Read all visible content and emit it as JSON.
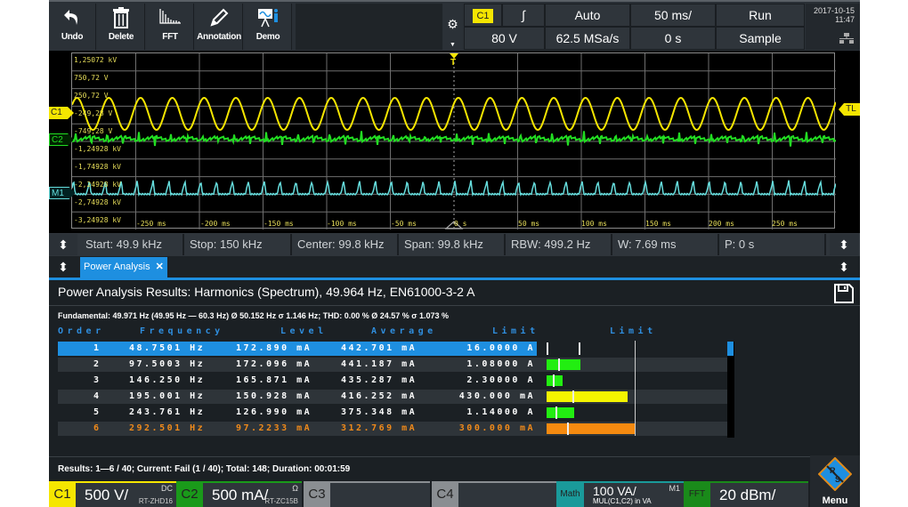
{
  "toolbar": {
    "buttons": [
      {
        "label": "Undo",
        "icon": "undo-icon"
      },
      {
        "label": "Delete",
        "icon": "trash-icon"
      },
      {
        "label": "FFT",
        "icon": "fft-icon"
      },
      {
        "label": "Annotation",
        "icon": "pencil-icon"
      },
      {
        "label": "Demo",
        "icon": "demo-icon"
      }
    ],
    "settings_icon": "gear-icon"
  },
  "header": {
    "trigger_source": "C1",
    "trigger_slope": "∫",
    "trigger_mode": "Auto",
    "timebase": "50 ms/",
    "run_state": "Run",
    "trigger_level": "80 V",
    "sample_rate": "62.5 MSa/s",
    "horizontal_position": "0 s",
    "acquisition_mode": "Sample",
    "date": "2017-10-15",
    "time": "11:47"
  },
  "scope": {
    "y_labels": [
      "1,25072 kV",
      "750,72 V",
      "250,72 V",
      "-249,28 V",
      "-749,28 V",
      "-1,24928 kV",
      "-1,74928 kV",
      "-2,24928 kV",
      "-2,74928 kV",
      "-3,24928 kV"
    ],
    "x_labels": [
      "-250 ms",
      "-200 ms",
      "-150 ms",
      "-100 ms",
      "-50 ms",
      "0 s",
      "50 ms",
      "100 ms",
      "150 ms",
      "200 ms",
      "250 ms"
    ],
    "markers": {
      "c1": "C1",
      "c2": "C2",
      "m1": "M1",
      "trigger_level": "TL",
      "trigger_pos": "T"
    },
    "colors": {
      "c1": "#f5e600",
      "c2": "#22dd22",
      "m1": "#66dddd"
    }
  },
  "fft_bar": {
    "start": "Start: 49.9 kHz",
    "stop": "Stop: 150 kHz",
    "center": "Center: 99.8 kHz",
    "span": "Span: 99.8 kHz",
    "rbw": "RBW: 499.2 Hz",
    "window": "W: 7.69 ms",
    "position": "P: 0 s"
  },
  "tabs": {
    "active": "Power Analysis",
    "close_icon": "✕"
  },
  "results": {
    "title": "Power Analysis Results: Harmonics (Spectrum), 49.964 Hz, EN61000-3-2 A",
    "fundamental": "Fundamental: 49.971 Hz (49.95 Hz — 60.3 Hz) Ø  50.152 Hz  σ 1.146 Hz; THD: 0.00 % Ø  24.57 % σ 1.073 %",
    "columns": [
      "Order",
      "Frequency",
      "Level",
      "Average",
      "Limit",
      "Limit"
    ],
    "rows": [
      {
        "order": "1",
        "frequency": "48.7501 Hz",
        "level": "172.890 mA",
        "average": "442.701 mA",
        "limit": "16.0000 A",
        "bar_pct": 0,
        "bar_color": "",
        "avg_pct": 38,
        "selected": true
      },
      {
        "order": "2",
        "frequency": "97.5003 Hz",
        "level": "172.096 mA",
        "average": "441.187 mA",
        "limit": "1.08000 A",
        "bar_pct": 40,
        "bar_color": "#22ee11",
        "avg_pct": 14
      },
      {
        "order": "3",
        "frequency": "146.250 Hz",
        "level": "165.871 mA",
        "average": "435.287 mA",
        "limit": "2.30000 A",
        "bar_pct": 19,
        "bar_color": "#22ee11",
        "avg_pct": 7
      },
      {
        "order": "4",
        "frequency": "195.001 Hz",
        "level": "150.928 mA",
        "average": "416.252 mA",
        "limit": "430.000 mA",
        "bar_pct": 96,
        "bar_color": "#f5f500",
        "avg_pct": 31
      },
      {
        "order": "5",
        "frequency": "243.761 Hz",
        "level": "126.990 mA",
        "average": "375.348 mA",
        "limit": "1.14000 A",
        "bar_pct": 33,
        "bar_color": "#22ee11",
        "avg_pct": 10
      },
      {
        "order": "6",
        "frequency": "292.501 Hz",
        "level": "97.2233 mA",
        "average": "312.769 mA",
        "limit": "300.000 mA",
        "bar_pct": 104,
        "bar_color": "#f58a10",
        "avg_pct": 24,
        "warn": true
      }
    ],
    "footer": "Results:  1—6 / 40; Current: Fail (1 / 40); Total: 148; Duration: 00:01:59"
  },
  "channels": {
    "c1": {
      "label": "C1",
      "scale": "500 V/",
      "coupling": "DC",
      "probe": "RT-ZHD16",
      "color": "#f5e600"
    },
    "c2": {
      "label": "C2",
      "scale": "500 mA/",
      "coupling": "Ω",
      "probe": "RT-ZC15B",
      "color": "#1a9a1a"
    },
    "c3": {
      "label": "C3"
    },
    "c4": {
      "label": "C4"
    },
    "math": {
      "label": "Math",
      "scale": "100 VA/",
      "id": "M1",
      "expr": "MUL(C1,C2) in VA",
      "color": "#1a9a9a"
    },
    "fft": {
      "label": "FFT",
      "scale": "20 dBm/",
      "color": "#1a8a1a"
    },
    "menu": {
      "label": "Menu"
    }
  }
}
